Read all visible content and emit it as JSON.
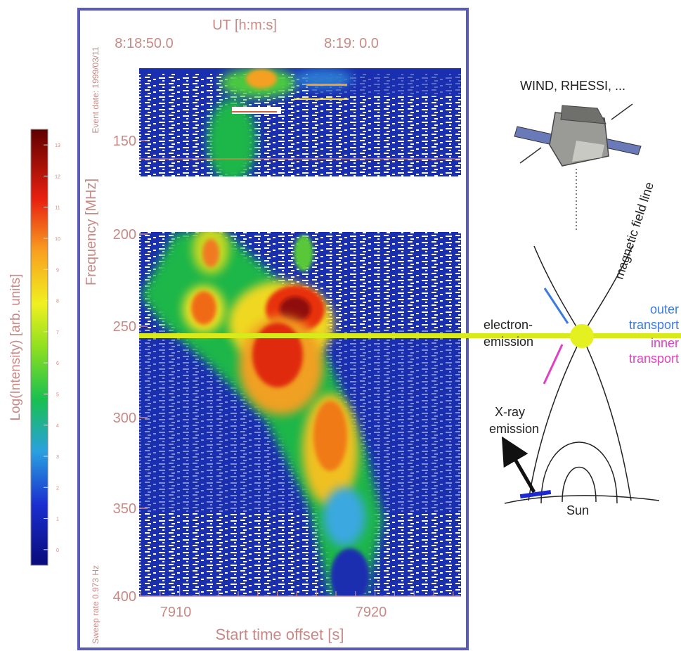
{
  "colors": {
    "panel_border": "#5a5ab8",
    "axis_text": "#c88a86",
    "spectrogram_background": "#1a2fb0",
    "emission_line": "#d8ea1a",
    "outer_transport": "#3b7be0",
    "inner_transport": "#e040c0",
    "detector": "#1a2ad0"
  },
  "spectrogram": {
    "top_axis_title": "UT [h:m:s]",
    "top_ticks": [
      "8:18:50.0",
      "8:19: 0.0"
    ],
    "side_note_top": "Event date: 1999/03/11",
    "side_note_bottom": "Sweep rate 0.973 Hz",
    "y_label": "Frequency [MHz]",
    "y_ticks": [
      "150",
      "200",
      "250",
      "300",
      "350",
      "400"
    ],
    "x_label": "Start time offset [s]",
    "x_ticks": [
      "7910",
      "7920"
    ]
  },
  "colorbar": {
    "label": "Log(Intensity) [arb. units]",
    "tick_labels": [
      "0",
      "1",
      "2",
      "3",
      "4",
      "5",
      "6",
      "7",
      "8",
      "9",
      "10",
      "11",
      "12",
      "13"
    ]
  },
  "diagram": {
    "spacecraft_label": "WIND, RHESSI, ...",
    "field_line_label": "magnetic field line",
    "electron_emission": "electron-\nemission",
    "outer_transport": "outer\ntransport",
    "inner_transport": "inner\ntransport",
    "xray_emission": "X-ray\nemission",
    "sun_label": "Sun"
  }
}
